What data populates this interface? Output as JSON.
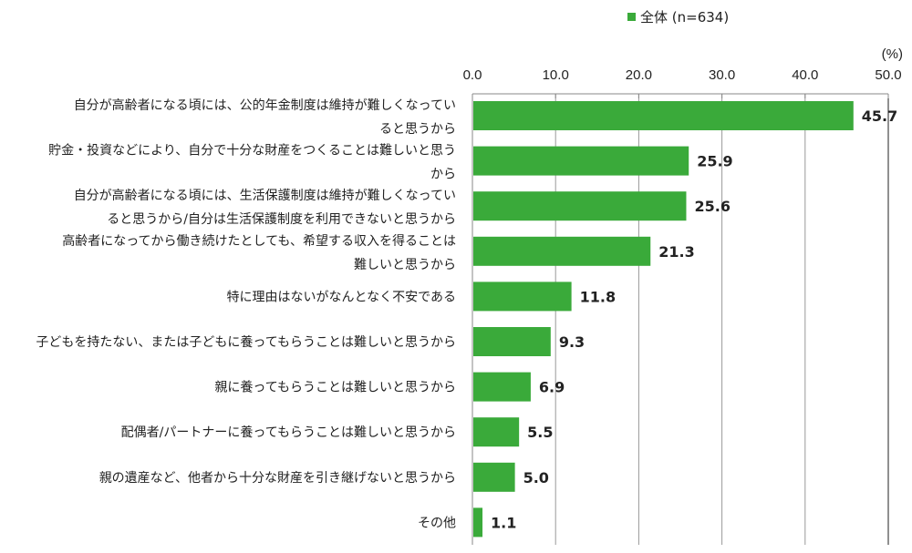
{
  "chart_data": {
    "type": "bar",
    "orientation": "horizontal",
    "legend": {
      "label": "全体 (n=634)",
      "position": "top"
    },
    "unit_label": "(%)",
    "xlim": [
      0,
      50
    ],
    "ticks": [
      "0.0",
      "10.0",
      "20.0",
      "30.0",
      "40.0",
      "50.0"
    ],
    "grid": true,
    "color": "#3aaa3a",
    "categories": [
      [
        "自分が高齢者になる頃には、公的年金制度は維持が難しくなってい",
        "ると思うから"
      ],
      [
        "貯金・投資などにより、自分で十分な財産をつくることは難しいと思う",
        "から"
      ],
      [
        "自分が高齢者になる頃には、生活保護制度は維持が難しくなってい",
        "ると思うから/自分は生活保護制度を利用できないと思うから"
      ],
      [
        "高齢者になってから働き続けたとしても、希望する収入を得ることは",
        "難しいと思うから"
      ],
      [
        "特に理由はないがなんとなく不安である"
      ],
      [
        "子どもを持たない、または子どもに養ってもらうことは難しいと思うから"
      ],
      [
        "親に養ってもらうことは難しいと思うから"
      ],
      [
        "配偶者/パートナーに養ってもらうことは難しいと思うから"
      ],
      [
        "親の遺産など、他者から十分な財産を引き継げないと思うから"
      ],
      [
        "その他"
      ]
    ],
    "values": [
      45.7,
      25.9,
      25.6,
      21.3,
      11.8,
      9.3,
      6.9,
      5.5,
      5.0,
      1.1
    ],
    "value_labels": [
      "45.7",
      "25.9",
      "25.6",
      "21.3",
      "11.8",
      "9.3",
      "6.9",
      "5.5",
      "5.0",
      "1.1"
    ]
  }
}
